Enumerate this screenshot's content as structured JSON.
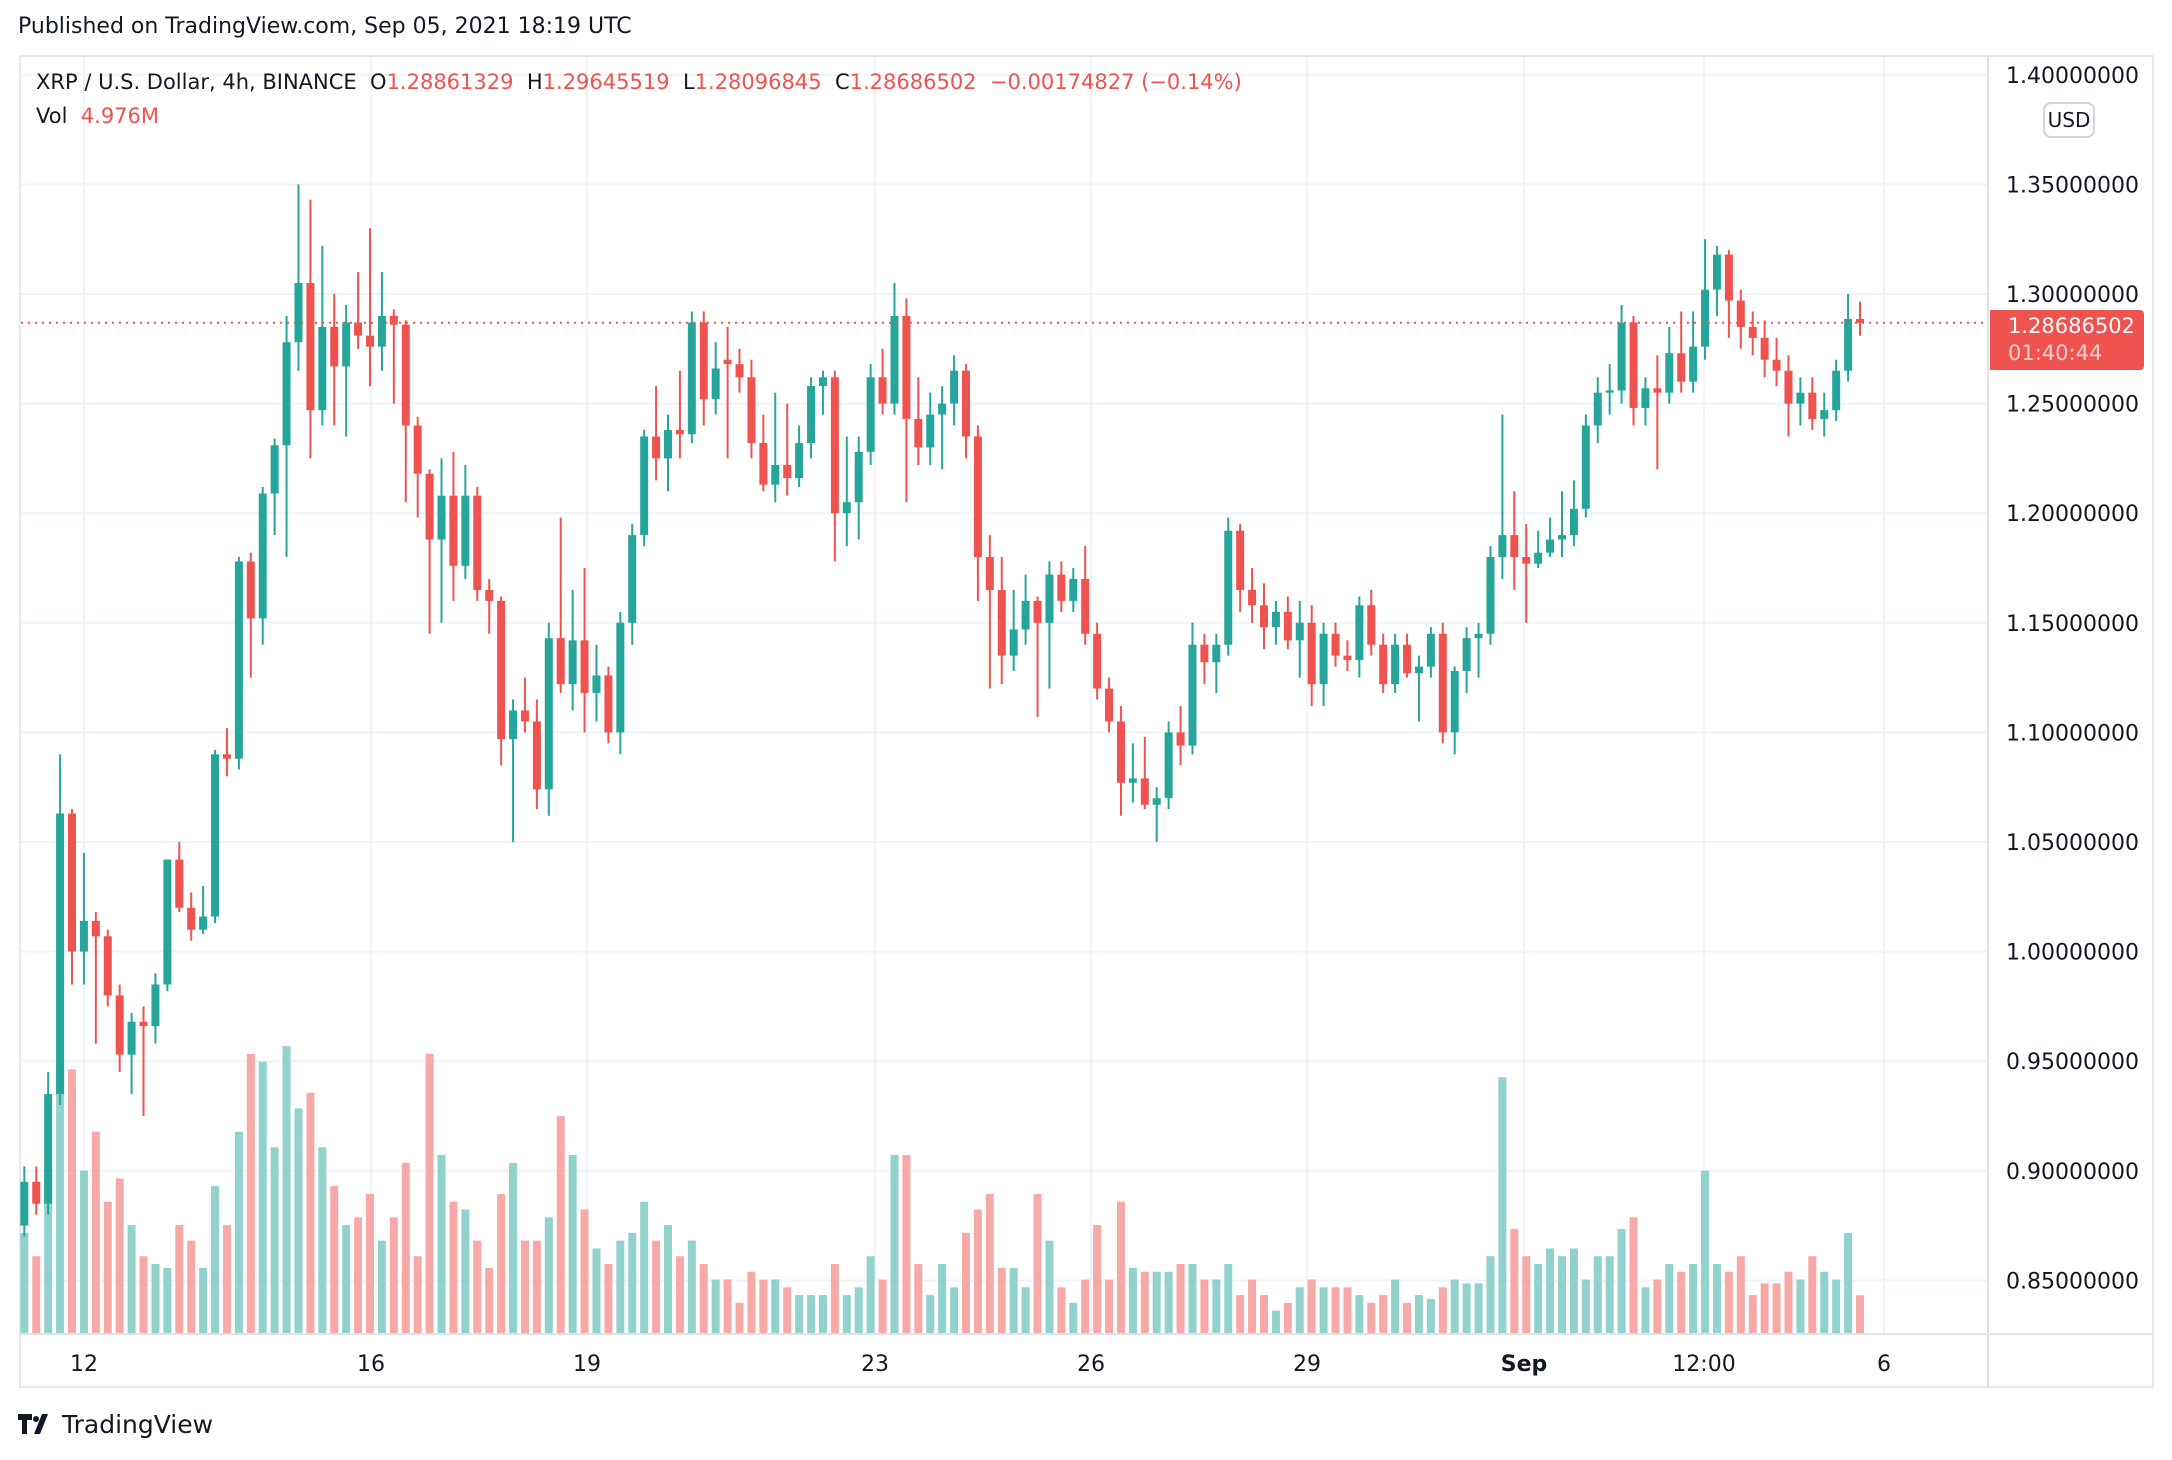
{
  "header": {
    "published": "Published on TradingView.com, Sep 05, 2021 18:19 UTC"
  },
  "legend": {
    "symbol": "XRP / U.S. Dollar, 4h, BINANCE",
    "o_label": "O",
    "open": "1.28861329",
    "h_label": "H",
    "high": "1.29645519",
    "l_label": "L",
    "low": "1.28096845",
    "c_label": "C",
    "close": "1.28686502",
    "change": "−0.00174827 (−0.14%)",
    "vol_label": "Vol",
    "vol_value": "4.976M"
  },
  "price_axis": {
    "currency_button": "USD",
    "current_price": "1.28686502",
    "countdown": "01:40:44"
  },
  "footer": {
    "brand": "TradingView"
  },
  "colors": {
    "up": "#26a69a",
    "down": "#ef5350",
    "up_volume": "#92d2cc",
    "down_volume": "#f7a9a7",
    "grid": "#f0f3fa"
  },
  "chart_data": {
    "type": "candlestick",
    "title": "XRP / U.S. Dollar, 4h, BINANCE",
    "y_ticks": [
      "1.40000000",
      "1.35000000",
      "1.30000000",
      "1.25000000",
      "1.20000000",
      "1.15000000",
      "1.10000000",
      "1.05000000",
      "1.00000000",
      "0.95000000",
      "0.90000000",
      "0.85000000"
    ],
    "ylim": [
      0.825,
      1.41
    ],
    "x_ticks": [
      "12",
      "16",
      "19",
      "23",
      "26",
      "29",
      "Sep",
      "12:00",
      "6"
    ],
    "last_price": 1.28686502,
    "grid": true,
    "columns": [
      "open",
      "high",
      "low",
      "close",
      "volume_M"
    ],
    "candles": [
      [
        0.875,
        0.902,
        0.87,
        0.895,
        13
      ],
      [
        0.895,
        0.902,
        0.88,
        0.885,
        10
      ],
      [
        0.885,
        0.945,
        0.88,
        0.935,
        21
      ],
      [
        0.935,
        1.09,
        0.93,
        1.063,
        35
      ],
      [
        1.063,
        1.065,
        0.985,
        1.0,
        34
      ],
      [
        1.0,
        1.045,
        0.985,
        1.014,
        21
      ],
      [
        1.014,
        1.018,
        0.958,
        1.007,
        26
      ],
      [
        1.007,
        1.01,
        0.975,
        0.98,
        17
      ],
      [
        0.98,
        0.985,
        0.945,
        0.953,
        20
      ],
      [
        0.953,
        0.972,
        0.935,
        0.968,
        14
      ],
      [
        0.968,
        0.975,
        0.925,
        0.966,
        10
      ],
      [
        0.966,
        0.99,
        0.958,
        0.985,
        9
      ],
      [
        0.985,
        1.042,
        0.982,
        1.042,
        8.5
      ],
      [
        1.042,
        1.05,
        1.018,
        1.02,
        14
      ],
      [
        1.02,
        1.027,
        1.005,
        1.01,
        12
      ],
      [
        1.01,
        1.03,
        1.008,
        1.016,
        8.5
      ],
      [
        1.016,
        1.092,
        1.013,
        1.09,
        19
      ],
      [
        1.09,
        1.102,
        1.08,
        1.088,
        14
      ],
      [
        1.088,
        1.18,
        1.083,
        1.178,
        26
      ],
      [
        1.178,
        1.182,
        1.125,
        1.152,
        36
      ],
      [
        1.152,
        1.212,
        1.14,
        1.209,
        35
      ],
      [
        1.209,
        1.234,
        1.19,
        1.231,
        24
      ],
      [
        1.231,
        1.29,
        1.18,
        1.278,
        37
      ],
      [
        1.278,
        1.35,
        1.265,
        1.305,
        29
      ],
      [
        1.305,
        1.343,
        1.225,
        1.247,
        31
      ],
      [
        1.247,
        1.322,
        1.24,
        1.285,
        24
      ],
      [
        1.285,
        1.3,
        1.24,
        1.267,
        19
      ],
      [
        1.267,
        1.295,
        1.235,
        1.287,
        14
      ],
      [
        1.287,
        1.31,
        1.275,
        1.281,
        15
      ],
      [
        1.281,
        1.33,
        1.258,
        1.276,
        18
      ],
      [
        1.276,
        1.31,
        1.265,
        1.29,
        12
      ],
      [
        1.29,
        1.293,
        1.25,
        1.286,
        15
      ],
      [
        1.286,
        1.288,
        1.205,
        1.24,
        22
      ],
      [
        1.24,
        1.244,
        1.198,
        1.218,
        10
      ],
      [
        1.218,
        1.22,
        1.145,
        1.188,
        36
      ],
      [
        1.188,
        1.225,
        1.15,
        1.208,
        23
      ],
      [
        1.208,
        1.228,
        1.16,
        1.176,
        17
      ],
      [
        1.176,
        1.222,
        1.17,
        1.208,
        16
      ],
      [
        1.208,
        1.212,
        1.16,
        1.165,
        12
      ],
      [
        1.165,
        1.17,
        1.145,
        1.16,
        8.5
      ],
      [
        1.16,
        1.162,
        1.085,
        1.097,
        18
      ],
      [
        1.097,
        1.115,
        1.05,
        1.11,
        22
      ],
      [
        1.11,
        1.125,
        1.1,
        1.105,
        12
      ],
      [
        1.105,
        1.115,
        1.065,
        1.074,
        12
      ],
      [
        1.074,
        1.15,
        1.062,
        1.143,
        15
      ],
      [
        1.143,
        1.198,
        1.118,
        1.122,
        28
      ],
      [
        1.122,
        1.165,
        1.11,
        1.142,
        23
      ],
      [
        1.142,
        1.175,
        1.1,
        1.118,
        16
      ],
      [
        1.118,
        1.14,
        1.105,
        1.126,
        11
      ],
      [
        1.126,
        1.13,
        1.095,
        1.1,
        9
      ],
      [
        1.1,
        1.155,
        1.09,
        1.15,
        12
      ],
      [
        1.15,
        1.195,
        1.14,
        1.19,
        13
      ],
      [
        1.19,
        1.238,
        1.185,
        1.235,
        17
      ],
      [
        1.235,
        1.258,
        1.215,
        1.225,
        12
      ],
      [
        1.225,
        1.245,
        1.21,
        1.238,
        14
      ],
      [
        1.238,
        1.265,
        1.225,
        1.236,
        10
      ],
      [
        1.236,
        1.292,
        1.232,
        1.287,
        12
      ],
      [
        1.287,
        1.292,
        1.24,
        1.252,
        9
      ],
      [
        1.252,
        1.278,
        1.245,
        1.266,
        7
      ],
      [
        1.27,
        1.285,
        1.225,
        1.268,
        7
      ],
      [
        1.268,
        1.275,
        1.255,
        1.262,
        4
      ],
      [
        1.262,
        1.27,
        1.225,
        1.232,
        8
      ],
      [
        1.232,
        1.245,
        1.21,
        1.213,
        7
      ],
      [
        1.213,
        1.255,
        1.205,
        1.222,
        7
      ],
      [
        1.222,
        1.25,
        1.208,
        1.216,
        6
      ],
      [
        1.216,
        1.24,
        1.212,
        1.232,
        5
      ],
      [
        1.232,
        1.262,
        1.225,
        1.258,
        5
      ],
      [
        1.258,
        1.265,
        1.245,
        1.262,
        5
      ],
      [
        1.262,
        1.265,
        1.178,
        1.2,
        9
      ],
      [
        1.2,
        1.235,
        1.185,
        1.205,
        5
      ],
      [
        1.205,
        1.235,
        1.188,
        1.228,
        6
      ],
      [
        1.228,
        1.268,
        1.222,
        1.262,
        10
      ],
      [
        1.262,
        1.275,
        1.245,
        1.25,
        7
      ],
      [
        1.25,
        1.305,
        1.245,
        1.29,
        23
      ],
      [
        1.29,
        1.298,
        1.205,
        1.243,
        23
      ],
      [
        1.243,
        1.262,
        1.222,
        1.23,
        9
      ],
      [
        1.23,
        1.255,
        1.222,
        1.245,
        5
      ],
      [
        1.245,
        1.258,
        1.22,
        1.25,
        9
      ],
      [
        1.25,
        1.272,
        1.24,
        1.265,
        6
      ],
      [
        1.265,
        1.268,
        1.225,
        1.235,
        13
      ],
      [
        1.235,
        1.24,
        1.16,
        1.18,
        16
      ],
      [
        1.18,
        1.19,
        1.12,
        1.165,
        18
      ],
      [
        1.165,
        1.18,
        1.122,
        1.135,
        8.5
      ],
      [
        1.135,
        1.165,
        1.128,
        1.147,
        8.5
      ],
      [
        1.147,
        1.172,
        1.14,
        1.16,
        6
      ],
      [
        1.16,
        1.162,
        1.107,
        1.15,
        18
      ],
      [
        1.15,
        1.178,
        1.12,
        1.172,
        12
      ],
      [
        1.172,
        1.178,
        1.155,
        1.16,
        6
      ],
      [
        1.16,
        1.175,
        1.155,
        1.17,
        4
      ],
      [
        1.17,
        1.185,
        1.14,
        1.145,
        7
      ],
      [
        1.145,
        1.15,
        1.115,
        1.12,
        14
      ],
      [
        1.12,
        1.125,
        1.1,
        1.105,
        7
      ],
      [
        1.105,
        1.112,
        1.062,
        1.077,
        17
      ],
      [
        1.077,
        1.095,
        1.068,
        1.079,
        8.5
      ],
      [
        1.079,
        1.098,
        1.065,
        1.067,
        8
      ],
      [
        1.067,
        1.075,
        1.05,
        1.07,
        8
      ],
      [
        1.07,
        1.105,
        1.065,
        1.1,
        8
      ],
      [
        1.1,
        1.112,
        1.085,
        1.094,
        9
      ],
      [
        1.094,
        1.15,
        1.09,
        1.14,
        9
      ],
      [
        1.14,
        1.145,
        1.122,
        1.132,
        7
      ],
      [
        1.132,
        1.145,
        1.118,
        1.14,
        7
      ],
      [
        1.14,
        1.198,
        1.135,
        1.192,
        9
      ],
      [
        1.192,
        1.195,
        1.155,
        1.165,
        5
      ],
      [
        1.165,
        1.175,
        1.15,
        1.158,
        7
      ],
      [
        1.158,
        1.168,
        1.138,
        1.148,
        5
      ],
      [
        1.148,
        1.16,
        1.14,
        1.155,
        3
      ],
      [
        1.155,
        1.162,
        1.138,
        1.142,
        4
      ],
      [
        1.142,
        1.16,
        1.125,
        1.15,
        6
      ],
      [
        1.15,
        1.158,
        1.112,
        1.122,
        7
      ],
      [
        1.122,
        1.15,
        1.112,
        1.145,
        6
      ],
      [
        1.145,
        1.15,
        1.13,
        1.135,
        6
      ],
      [
        1.135,
        1.142,
        1.128,
        1.133,
        6
      ],
      [
        1.133,
        1.162,
        1.125,
        1.158,
        5
      ],
      [
        1.158,
        1.165,
        1.135,
        1.14,
        4
      ],
      [
        1.14,
        1.145,
        1.118,
        1.122,
        5
      ],
      [
        1.122,
        1.145,
        1.118,
        1.14,
        7
      ],
      [
        1.14,
        1.145,
        1.125,
        1.127,
        4
      ],
      [
        1.127,
        1.135,
        1.105,
        1.13,
        5
      ],
      [
        1.13,
        1.148,
        1.125,
        1.145,
        4.5
      ],
      [
        1.145,
        1.15,
        1.095,
        1.1,
        6
      ],
      [
        1.1,
        1.13,
        1.09,
        1.128,
        7
      ],
      [
        1.128,
        1.148,
        1.118,
        1.143,
        6.5
      ],
      [
        1.143,
        1.15,
        1.125,
        1.145,
        6.5
      ],
      [
        1.145,
        1.185,
        1.14,
        1.18,
        10
      ],
      [
        1.18,
        1.245,
        1.17,
        1.19,
        33
      ],
      [
        1.19,
        1.21,
        1.165,
        1.18,
        13.5
      ],
      [
        1.18,
        1.195,
        1.15,
        1.177,
        10
      ],
      [
        1.177,
        1.192,
        1.175,
        1.182,
        9
      ],
      [
        1.182,
        1.198,
        1.18,
        1.188,
        11
      ],
      [
        1.188,
        1.21,
        1.18,
        1.19,
        10
      ],
      [
        1.19,
        1.215,
        1.185,
        1.202,
        11
      ],
      [
        1.202,
        1.245,
        1.198,
        1.24,
        7
      ],
      [
        1.24,
        1.262,
        1.232,
        1.255,
        10
      ],
      [
        1.255,
        1.268,
        1.245,
        1.256,
        10
      ],
      [
        1.256,
        1.295,
        1.25,
        1.287,
        13.5
      ],
      [
        1.287,
        1.29,
        1.24,
        1.248,
        15
      ],
      [
        1.248,
        1.262,
        1.24,
        1.257,
        6
      ],
      [
        1.257,
        1.272,
        1.22,
        1.255,
        7
      ],
      [
        1.255,
        1.285,
        1.25,
        1.273,
        9
      ],
      [
        1.273,
        1.292,
        1.255,
        1.26,
        8
      ],
      [
        1.26,
        1.292,
        1.255,
        1.276,
        9
      ],
      [
        1.276,
        1.325,
        1.27,
        1.302,
        21
      ],
      [
        1.302,
        1.322,
        1.29,
        1.318,
        9
      ],
      [
        1.318,
        1.32,
        1.28,
        1.297,
        8
      ],
      [
        1.297,
        1.302,
        1.275,
        1.285,
        10
      ],
      [
        1.285,
        1.292,
        1.272,
        1.28,
        5
      ],
      [
        1.28,
        1.288,
        1.262,
        1.27,
        6.5
      ],
      [
        1.27,
        1.28,
        1.258,
        1.265,
        6.5
      ],
      [
        1.265,
        1.272,
        1.235,
        1.25,
        8
      ],
      [
        1.25,
        1.262,
        1.24,
        1.255,
        7
      ],
      [
        1.255,
        1.262,
        1.238,
        1.243,
        10
      ],
      [
        1.243,
        1.255,
        1.235,
        1.247,
        8
      ],
      [
        1.247,
        1.27,
        1.242,
        1.265,
        7
      ],
      [
        1.265,
        1.3,
        1.26,
        1.28861,
        13
      ],
      [
        1.28861329,
        1.29645519,
        1.28096845,
        1.28686502,
        4.976
      ]
    ]
  }
}
